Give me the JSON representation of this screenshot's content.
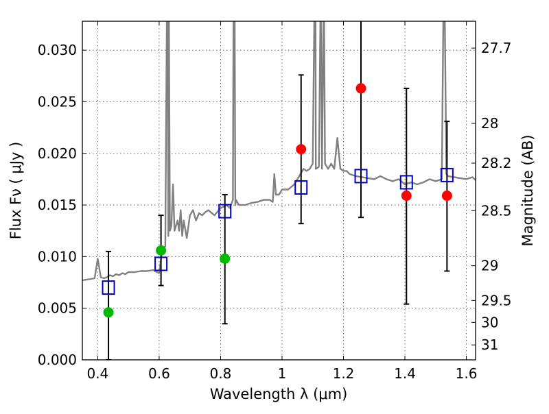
{
  "chart_data": {
    "type": "scatter",
    "xlabel": "Wavelength  λ (μm)",
    "ylabel": "Flux  Fν  ( μJy )",
    "y2label": "Magnitude (AB)",
    "xlim": [
      0.35,
      1.63
    ],
    "ylim": [
      0.0,
      0.0328
    ],
    "x_ticks": [
      0.4,
      0.6,
      0.8,
      1.0,
      1.2,
      1.4,
      1.6
    ],
    "x_tick_labels": [
      "0.4",
      "0.6",
      "0.8",
      "1",
      "1.2",
      "1.4",
      "1.6"
    ],
    "y_ticks": [
      0.0,
      0.005,
      0.01,
      0.015,
      0.02,
      0.025,
      0.03
    ],
    "y_tick_labels": [
      "0.000",
      "0.005",
      "0.010",
      "0.015",
      "0.020",
      "0.025",
      "0.030"
    ],
    "mag_ticks": [
      {
        "mag": 27.7,
        "label": "27.7"
      },
      {
        "mag": 28.0,
        "label": "28"
      },
      {
        "mag": 28.2,
        "label": "28.2"
      },
      {
        "mag": 28.5,
        "label": "28.5"
      },
      {
        "mag": 29.0,
        "label": "29"
      },
      {
        "mag": 29.5,
        "label": "29.5"
      },
      {
        "mag": 30.0,
        "label": "30"
      },
      {
        "mag": 31.0,
        "label": "31"
      }
    ],
    "grid": true,
    "colors": {
      "model": "#808080",
      "detected": "#ff0000",
      "other": "#00bb00",
      "model_box": "#0000cc",
      "errorbar": "#000000"
    },
    "series": [
      {
        "name": "model spectrum",
        "style": "line",
        "x": [
          0.35,
          0.37,
          0.39,
          0.4,
          0.41,
          0.42,
          0.43,
          0.44,
          0.45,
          0.46,
          0.47,
          0.48,
          0.49,
          0.5,
          0.52,
          0.54,
          0.56,
          0.58,
          0.6,
          0.61,
          0.62,
          0.625,
          0.628,
          0.63,
          0.632,
          0.635,
          0.64,
          0.645,
          0.65,
          0.655,
          0.66,
          0.665,
          0.67,
          0.675,
          0.68,
          0.69,
          0.7,
          0.71,
          0.72,
          0.73,
          0.74,
          0.75,
          0.76,
          0.78,
          0.8,
          0.82,
          0.83,
          0.84,
          0.842,
          0.844,
          0.846,
          0.848,
          0.85,
          0.86,
          0.88,
          0.9,
          0.92,
          0.94,
          0.96,
          0.97,
          0.975,
          0.98,
          0.99,
          1.0,
          1.02,
          1.04,
          1.06,
          1.07,
          1.08,
          1.09,
          1.1,
          1.105,
          1.107,
          1.109,
          1.11,
          1.12,
          1.125,
          1.127,
          1.13,
          1.135,
          1.137,
          1.14,
          1.15,
          1.16,
          1.17,
          1.18,
          1.19,
          1.2,
          1.21,
          1.22,
          1.24,
          1.26,
          1.28,
          1.3,
          1.32,
          1.34,
          1.36,
          1.38,
          1.4,
          1.42,
          1.44,
          1.46,
          1.48,
          1.5,
          1.52,
          1.525,
          1.53,
          1.535,
          1.54,
          1.56,
          1.58,
          1.6,
          1.62,
          1.63
        ],
        "y": [
          0.0077,
          0.0078,
          0.0079,
          0.0098,
          0.008,
          0.0079,
          0.008,
          0.0082,
          0.0081,
          0.0083,
          0.0082,
          0.0084,
          0.0083,
          0.0085,
          0.0085,
          0.0086,
          0.0086,
          0.0087,
          0.0084,
          0.0106,
          0.011,
          0.033,
          0.033,
          0.012,
          0.033,
          0.0125,
          0.013,
          0.017,
          0.0125,
          0.013,
          0.0135,
          0.0125,
          0.0145,
          0.012,
          0.0135,
          0.0118,
          0.014,
          0.0145,
          0.0135,
          0.0142,
          0.014,
          0.0143,
          0.0145,
          0.014,
          0.0147,
          0.015,
          0.0147,
          0.0155,
          0.033,
          0.033,
          0.033,
          0.015,
          0.0155,
          0.015,
          0.015,
          0.0152,
          0.0153,
          0.0155,
          0.0155,
          0.0153,
          0.018,
          0.016,
          0.016,
          0.0165,
          0.0165,
          0.017,
          0.018,
          0.0185,
          0.0183,
          0.0185,
          0.019,
          0.033,
          0.033,
          0.033,
          0.0185,
          0.0187,
          0.033,
          0.033,
          0.0185,
          0.033,
          0.033,
          0.019,
          0.0185,
          0.019,
          0.0185,
          0.0215,
          0.0185,
          0.0183,
          0.0183,
          0.018,
          0.0178,
          0.0177,
          0.0176,
          0.0175,
          0.0178,
          0.0175,
          0.0173,
          0.0175,
          0.017,
          0.0172,
          0.017,
          0.0172,
          0.0175,
          0.0173,
          0.0175,
          0.033,
          0.033,
          0.018,
          0.0178,
          0.0177,
          0.0176,
          0.0175,
          0.0177,
          0.0174
        ]
      },
      {
        "name": "model photometry",
        "style": "open-square",
        "x": [
          0.435,
          0.606,
          0.814,
          1.062,
          1.257,
          1.405,
          1.537
        ],
        "y": [
          0.007,
          0.0093,
          0.0144,
          0.0167,
          0.0178,
          0.0172,
          0.0179
        ]
      },
      {
        "name": "observed photometry (red)",
        "style": "filled-circle",
        "x": [
          1.062,
          1.257,
          1.405,
          1.537
        ],
        "y": [
          0.0204,
          0.0263,
          0.0159,
          0.0159
        ]
      },
      {
        "name": "observed photometry (green)",
        "style": "filled-circle",
        "x": [
          0.435,
          0.606,
          0.814
        ],
        "y": [
          0.0046,
          0.0106,
          0.0098
        ]
      },
      {
        "name": "error bars",
        "style": "errorbar",
        "x": [
          0.435,
          0.606,
          0.814,
          1.062,
          1.257,
          1.405,
          1.537
        ],
        "low": [
          0.0,
          0.0072,
          0.0035,
          0.0132,
          0.0138,
          0.0054,
          0.0086
        ],
        "high": [
          0.0105,
          0.014,
          0.016,
          0.0276,
          0.033,
          0.0263,
          0.0231
        ]
      }
    ]
  }
}
